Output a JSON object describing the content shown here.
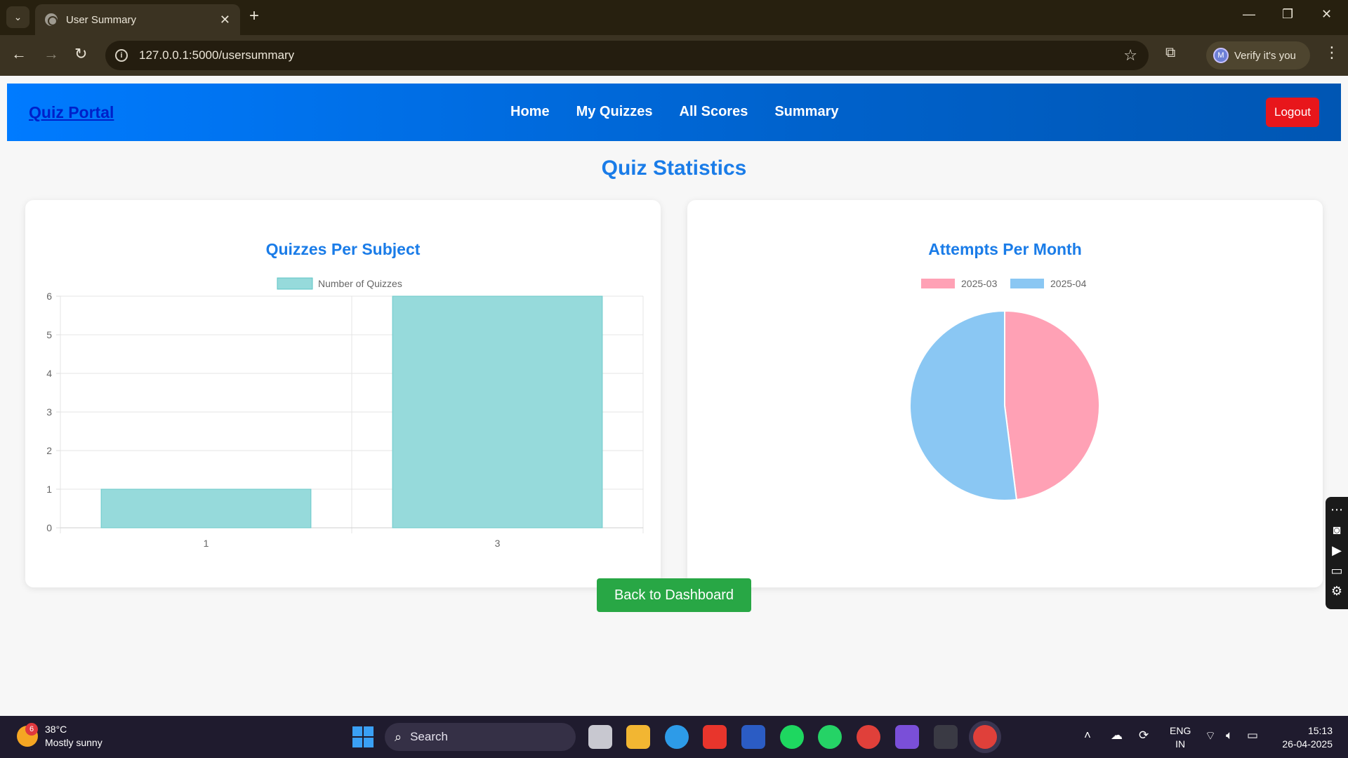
{
  "browser": {
    "tab_title": "User Summary",
    "url": "127.0.0.1:5000/usersummary",
    "profile_initial": "M",
    "verify_label": "Verify it's you"
  },
  "navbar": {
    "brand": "Quiz Portal",
    "links": [
      "Home",
      "My Quizzes",
      "All Scores",
      "Summary"
    ],
    "logout_label": "Logout"
  },
  "page": {
    "title": "Quiz Statistics",
    "back_label": "Back to Dashboard"
  },
  "chart_data": [
    {
      "type": "bar",
      "title": "Quizzes Per Subject",
      "categories": [
        "1",
        "3"
      ],
      "series": [
        {
          "name": "Number of Quizzes",
          "values": [
            1,
            6
          ],
          "color": "#96dadb"
        }
      ],
      "ylim": [
        0,
        6
      ],
      "yticks": [
        "0",
        "1",
        "2",
        "3",
        "4",
        "5",
        "6"
      ],
      "grid": true,
      "legend": "top"
    },
    {
      "type": "pie",
      "title": "Attempts Per Month",
      "labels": [
        "2025-03",
        "2025-04"
      ],
      "values": [
        48,
        52
      ],
      "colors": [
        "#ffa1b5",
        "#8ac7f3"
      ],
      "legend": "top"
    }
  ],
  "taskbar": {
    "temperature": "38°C",
    "weather": "Mostly sunny",
    "weather_badge": "6",
    "search_label": "Search",
    "lang_top": "ENG",
    "lang_bottom": "IN",
    "time": "15:13",
    "date": "26-04-2025"
  }
}
